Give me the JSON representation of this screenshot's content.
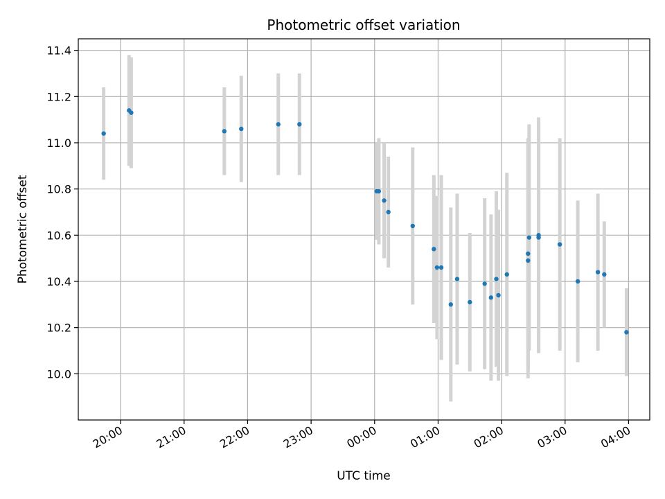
{
  "chart_data": {
    "type": "scatter",
    "title": "Photometric offset variation",
    "xlabel": "UTC time",
    "ylabel": "Photometric offset",
    "grid": true,
    "x_tick_labels": [
      "20:00",
      "21:00",
      "22:00",
      "23:00",
      "00:00",
      "01:00",
      "02:00",
      "03:00",
      "04:00"
    ],
    "y_tick_labels": [
      "10.0",
      "10.2",
      "10.4",
      "10.6",
      "10.8",
      "11.0",
      "11.2",
      "11.4"
    ],
    "xlim": [
      "19:20",
      "04:20"
    ],
    "ylim": [
      9.8,
      11.45
    ],
    "series": [
      {
        "color": "#1f77b4",
        "errorbar_color": "#d3d3d3",
        "points": [
          {
            "x": "19:44",
            "y": 11.04,
            "err": 0.2
          },
          {
            "x": "20:08",
            "y": 11.14,
            "err": 0.24
          },
          {
            "x": "20:10",
            "y": 11.13,
            "err": 0.24
          },
          {
            "x": "21:38",
            "y": 11.05,
            "err": 0.19
          },
          {
            "x": "21:54",
            "y": 11.06,
            "err": 0.23
          },
          {
            "x": "22:29",
            "y": 11.08,
            "err": 0.22
          },
          {
            "x": "22:49",
            "y": 11.08,
            "err": 0.22
          },
          {
            "x": "00:02",
            "y": 10.79,
            "err": 0.21
          },
          {
            "x": "00:04",
            "y": 10.79,
            "err": 0.23
          },
          {
            "x": "00:09",
            "y": 10.75,
            "err": 0.25
          },
          {
            "x": "00:13",
            "y": 10.7,
            "err": 0.24
          },
          {
            "x": "00:36",
            "y": 10.64,
            "err": 0.34
          },
          {
            "x": "00:56",
            "y": 10.54,
            "err": 0.32
          },
          {
            "x": "00:59",
            "y": 10.46,
            "err": 0.31
          },
          {
            "x": "01:03",
            "y": 10.46,
            "err": 0.4
          },
          {
            "x": "01:12",
            "y": 10.3,
            "err": 0.42
          },
          {
            "x": "01:18",
            "y": 10.41,
            "err": 0.37
          },
          {
            "x": "01:30",
            "y": 10.31,
            "err": 0.3
          },
          {
            "x": "01:44",
            "y": 10.39,
            "err": 0.37
          },
          {
            "x": "01:50",
            "y": 10.33,
            "err": 0.36
          },
          {
            "x": "01:55",
            "y": 10.41,
            "err": 0.38
          },
          {
            "x": "01:57",
            "y": 10.34,
            "err": 0.37
          },
          {
            "x": "02:05",
            "y": 10.43,
            "err": 0.44
          },
          {
            "x": "02:25",
            "y": 10.49,
            "err": 0.51
          },
          {
            "x": "02:25",
            "y": 10.52,
            "err": 0.5
          },
          {
            "x": "02:26",
            "y": 10.59,
            "err": 0.49
          },
          {
            "x": "02:35",
            "y": 10.59,
            "err": 0.5
          },
          {
            "x": "02:35",
            "y": 10.6,
            "err": 0.51
          },
          {
            "x": "02:55",
            "y": 10.56,
            "err": 0.46
          },
          {
            "x": "03:12",
            "y": 10.4,
            "err": 0.35
          },
          {
            "x": "03:31",
            "y": 10.44,
            "err": 0.34
          },
          {
            "x": "03:37",
            "y": 10.43,
            "err": 0.23
          },
          {
            "x": "03:58",
            "y": 10.18,
            "err": 0.19
          }
        ]
      }
    ]
  }
}
